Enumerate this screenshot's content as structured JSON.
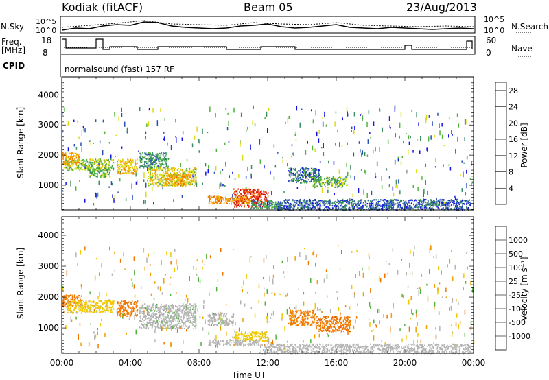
{
  "header": {
    "station": "Kodiak (fitACF)",
    "beam": "Beam 05",
    "date": "23/Aug/2013"
  },
  "summary": {
    "nsky_label": "N.Sky",
    "nsky_ticks": [
      "10^5",
      "10^0"
    ],
    "nsearch_label": "N.Search",
    "nsearch_ticks": [
      "10^5",
      "10^0"
    ],
    "freq_label": "Freq.",
    "freq_unit": "[MHz]",
    "freq_ticks": [
      "18",
      "8"
    ],
    "nave_label": "Nave",
    "nave_ticks": [
      "60",
      "0"
    ],
    "cpid_label": "CPID",
    "cpid_text": "normalsound (fast) 157 RF"
  },
  "colors": {
    "frame": "#000000",
    "power_scale": [
      "#1414e6",
      "#2850b4",
      "#3c8c64",
      "#50b43c",
      "#dcdc14",
      "#f0b400",
      "#f08c00",
      "#f06400",
      "#e63214",
      "#dc0000"
    ],
    "velocity_scale": [
      "#1414c8",
      "#2864b4",
      "#3c8c50",
      "#50b43c",
      "#b4b4b4",
      "#f0c800",
      "#f0a000",
      "#f07800",
      "#e63c14",
      "#dc0000"
    ]
  },
  "chart_data": [
    {
      "type": "heatmap",
      "name": "power",
      "ylabel": "Slant Range [km]",
      "yticks": [
        1000,
        2000,
        3000,
        4000
      ],
      "ylim": [
        180,
        4600
      ],
      "xlim": [
        0,
        24
      ],
      "colorbar_label": "Power [dB]",
      "colorbar_ticks": [
        "4",
        "8",
        "12",
        "16",
        "20",
        "24",
        "28"
      ],
      "clim": [
        0,
        30
      ],
      "regions": [
        {
          "t0": 0.1,
          "t1": 3.0,
          "r0": 1500,
          "r1": 1900,
          "value": 12
        },
        {
          "t0": 1.5,
          "t1": 2.8,
          "r0": 1300,
          "r1": 1600,
          "value": 10
        },
        {
          "t0": 3.2,
          "t1": 4.4,
          "r0": 1400,
          "r1": 1900,
          "value": 16
        },
        {
          "t0": 4.5,
          "t1": 6.2,
          "r0": 1600,
          "r1": 2100,
          "value": 8
        },
        {
          "t0": 5.0,
          "t1": 7.8,
          "r0": 1000,
          "r1": 1600,
          "value": 14
        },
        {
          "t0": 6.0,
          "t1": 7.5,
          "r0": 1000,
          "r1": 1400,
          "value": 18
        },
        {
          "t0": 10.0,
          "t1": 12.0,
          "r0": 300,
          "r1": 900,
          "value": 26
        },
        {
          "t0": 8.5,
          "t1": 11.0,
          "r0": 400,
          "r1": 650,
          "value": 20
        },
        {
          "t0": 11.0,
          "t1": 12.8,
          "r0": 250,
          "r1": 500,
          "value": 8
        },
        {
          "t0": 13.2,
          "t1": 15.0,
          "r0": 1100,
          "r1": 1600,
          "value": 6
        },
        {
          "t0": 14.6,
          "t1": 16.6,
          "r0": 950,
          "r1": 1300,
          "value": 10
        },
        {
          "t0": 12.5,
          "t1": 23.8,
          "r0": 190,
          "r1": 550,
          "value": 5
        },
        {
          "t0": 0.0,
          "t1": 1.0,
          "r0": 1700,
          "r1": 2100,
          "value": 18
        }
      ]
    },
    {
      "type": "heatmap",
      "name": "velocity",
      "ylabel": "Slant Range [km]",
      "yticks": [
        1000,
        2000,
        3000,
        4000
      ],
      "ylim": [
        180,
        4600
      ],
      "xlim": [
        0,
        24
      ],
      "colorbar_label": "Velocity [m s⁻¹]",
      "colorbar_ticks": [
        "1000",
        "500",
        "100",
        "25",
        "-25",
        "-100",
        "-500",
        "-1000"
      ],
      "xticks": [
        "00:00",
        "04:00",
        "08:00",
        "12:00",
        "16:00",
        "20:00",
        "00:00"
      ],
      "xlabel": "Time UT",
      "regions": [
        {
          "t0": 0.0,
          "t1": 1.2,
          "r0": 1700,
          "r1": 2100,
          "value": -150
        },
        {
          "t0": 0.3,
          "t1": 3.0,
          "r0": 1500,
          "r1": 1900,
          "value": 20
        },
        {
          "t0": 3.2,
          "t1": 4.4,
          "r0": 1400,
          "r1": 1900,
          "value": -150
        },
        {
          "t0": 4.5,
          "t1": 7.8,
          "r0": 1000,
          "r1": 1800,
          "value": 80
        },
        {
          "t0": 8.5,
          "t1": 10.0,
          "r0": 1100,
          "r1": 1500,
          "value": 80
        },
        {
          "t0": 10.0,
          "t1": 12.0,
          "r0": 600,
          "r1": 900,
          "value": 10
        },
        {
          "t0": 8.5,
          "t1": 11.5,
          "r0": 450,
          "r1": 650,
          "value": 60
        },
        {
          "t0": 11.5,
          "t1": 23.8,
          "r0": 190,
          "r1": 500,
          "value": 50
        },
        {
          "t0": 13.2,
          "t1": 14.8,
          "r0": 1100,
          "r1": 1600,
          "value": -120
        },
        {
          "t0": 14.8,
          "t1": 16.8,
          "r0": 900,
          "r1": 1400,
          "value": -200
        }
      ]
    }
  ]
}
